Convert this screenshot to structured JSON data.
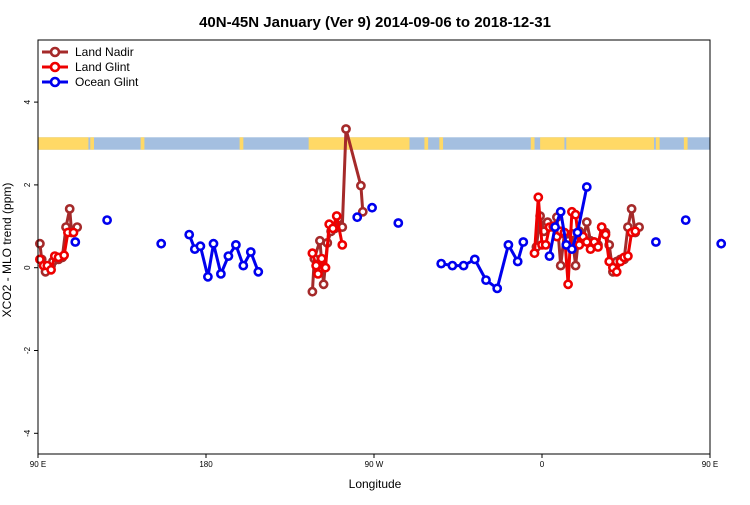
{
  "chart_data": {
    "type": "line",
    "title": "40N-45N January (Ver 9)   2014-09-06 to 2018-12-31",
    "xlabel": "Longitude",
    "ylabel": "XCO2 - MLO trend (ppm)",
    "xlim": [
      90,
      450
    ],
    "ylim": [
      -4.5,
      5.5
    ],
    "x_ticks": [
      {
        "value": 90,
        "label": "90 E"
      },
      {
        "value": 180,
        "label": "180"
      },
      {
        "value": 270,
        "label": "90 W"
      },
      {
        "value": 360,
        "label": "0"
      },
      {
        "value": 450,
        "label": "90 E"
      },
      {
        "value": 540,
        "label": "180"
      }
    ],
    "y_ticks": [
      -4,
      -2,
      0,
      2,
      4
    ],
    "grid": false,
    "legend_position": "top-left",
    "land_strip": {
      "y_range": [
        2.85,
        3.15
      ],
      "land_color": "#FFD966",
      "ocean_color": "#A4BFE0"
    },
    "series": [
      {
        "name": "Land Nadir",
        "color": "#A52A2A",
        "segments": [
          [
            [
              91,
              0.58
            ],
            [
              92,
              0.2
            ],
            [
              94,
              -0.1
            ],
            [
              97,
              0.05
            ],
            [
              98,
              0.15
            ],
            [
              101,
              0.2
            ],
            [
              103,
              0.25
            ],
            [
              105,
              0.98
            ],
            [
              107,
              1.42
            ],
            [
              108,
              0.85
            ],
            [
              111,
              0.98
            ]
          ],
          [
            [
              237,
              -0.58
            ],
            [
              238,
              0.22
            ],
            [
              241,
              0.65
            ],
            [
              243,
              -0.4
            ],
            [
              245,
              0.6
            ],
            [
              247,
              0.88
            ],
            [
              249,
              0.95
            ],
            [
              251,
              1.18
            ],
            [
              253,
              0.98
            ],
            [
              255,
              3.35
            ],
            [
              263,
              1.98
            ],
            [
              264,
              1.35
            ]
          ],
          [
            [
              357,
              0.5
            ],
            [
              359,
              1.25
            ],
            [
              361,
              0.88
            ],
            [
              363,
              1.1
            ],
            [
              366,
              0.98
            ],
            [
              368,
              1.22
            ],
            [
              370,
              0.05
            ],
            [
              372,
              0.82
            ],
            [
              374,
              0.65
            ],
            [
              376,
              0.82
            ],
            [
              378,
              0.05
            ],
            [
              380,
              0.88
            ],
            [
              382,
              0.68
            ],
            [
              384,
              1.1
            ],
            [
              386,
              0.65
            ],
            [
              388,
              0.62
            ],
            [
              390,
              0.55
            ],
            [
              392,
              0.98
            ],
            [
              394,
              0.85
            ],
            [
              396,
              0.55
            ],
            [
              398,
              -0.1
            ],
            [
              400,
              0.15
            ],
            [
              402,
              0.2
            ],
            [
              404,
              0.2
            ],
            [
              406,
              0.98
            ],
            [
              408,
              1.42
            ],
            [
              410,
              0.85
            ],
            [
              412,
              0.98
            ]
          ]
        ]
      },
      {
        "name": "Land Glint",
        "color": "#EE0000",
        "segments": [
          [
            [
              91,
              0.2
            ],
            [
              93,
              0.05
            ],
            [
              95,
              0.05
            ],
            [
              97,
              -0.05
            ],
            [
              99,
              0.28
            ],
            [
              101,
              0.25
            ],
            [
              104,
              0.3
            ],
            [
              106,
              0.85
            ],
            [
              109,
              0.85
            ]
          ],
          [
            [
              237,
              0.35
            ],
            [
              239,
              0.05
            ],
            [
              240,
              -0.15
            ],
            [
              242,
              0.22
            ],
            [
              244,
              0.0
            ],
            [
              246,
              1.05
            ],
            [
              248,
              0.95
            ],
            [
              250,
              1.25
            ],
            [
              253,
              0.55
            ]
          ],
          [
            [
              356,
              0.35
            ],
            [
              358,
              1.7
            ],
            [
              360,
              0.55
            ],
            [
              362,
              0.55
            ],
            [
              364,
              0.98
            ],
            [
              366,
              1.0
            ],
            [
              368,
              0.75
            ],
            [
              370,
              0.88
            ],
            [
              372,
              0.85
            ],
            [
              374,
              -0.4
            ],
            [
              376,
              1.35
            ],
            [
              378,
              1.28
            ],
            [
              380,
              0.55
            ],
            [
              382,
              0.75
            ],
            [
              384,
              0.62
            ],
            [
              386,
              0.45
            ],
            [
              388,
              0.62
            ],
            [
              390,
              0.5
            ],
            [
              392,
              0.98
            ],
            [
              394,
              0.8
            ],
            [
              396,
              0.15
            ],
            [
              398,
              0.0
            ],
            [
              400,
              -0.1
            ],
            [
              402,
              0.15
            ],
            [
              404,
              0.25
            ],
            [
              406,
              0.28
            ],
            [
              408,
              0.85
            ],
            [
              410,
              0.88
            ]
          ]
        ]
      },
      {
        "name": "Ocean Glint",
        "color": "#0000EE",
        "segments": [
          [
            [
              110,
              0.62
            ]
          ],
          [
            [
              127,
              1.15
            ]
          ],
          [
            [
              156,
              0.58
            ]
          ],
          [
            [
              171,
              0.8
            ],
            [
              174,
              0.45
            ],
            [
              177,
              0.52
            ],
            [
              181,
              -0.22
            ],
            [
              184,
              0.58
            ],
            [
              188,
              -0.15
            ],
            [
              192,
              0.28
            ],
            [
              196,
              0.55
            ],
            [
              200,
              0.05
            ],
            [
              204,
              0.38
            ],
            [
              208,
              -0.1
            ]
          ],
          [
            [
              261,
              1.22
            ]
          ],
          [
            [
              269,
              1.45
            ]
          ],
          [
            [
              283,
              1.08
            ]
          ],
          [
            [
              306,
              0.1
            ],
            [
              312,
              0.05
            ],
            [
              318,
              0.05
            ],
            [
              324,
              0.2
            ],
            [
              330,
              -0.3
            ],
            [
              336,
              -0.5
            ],
            [
              342,
              0.55
            ],
            [
              347,
              0.15
            ],
            [
              350,
              0.62
            ]
          ],
          [
            [
              364,
              0.28
            ],
            [
              367,
              0.98
            ],
            [
              370,
              1.35
            ],
            [
              373,
              0.55
            ],
            [
              376,
              0.45
            ],
            [
              379,
              0.85
            ],
            [
              384,
              1.95
            ]
          ],
          [
            [
              421,
              0.62
            ]
          ],
          [
            [
              437,
              1.15
            ]
          ],
          [
            [
              456,
              0.58
            ]
          ]
        ]
      }
    ]
  }
}
